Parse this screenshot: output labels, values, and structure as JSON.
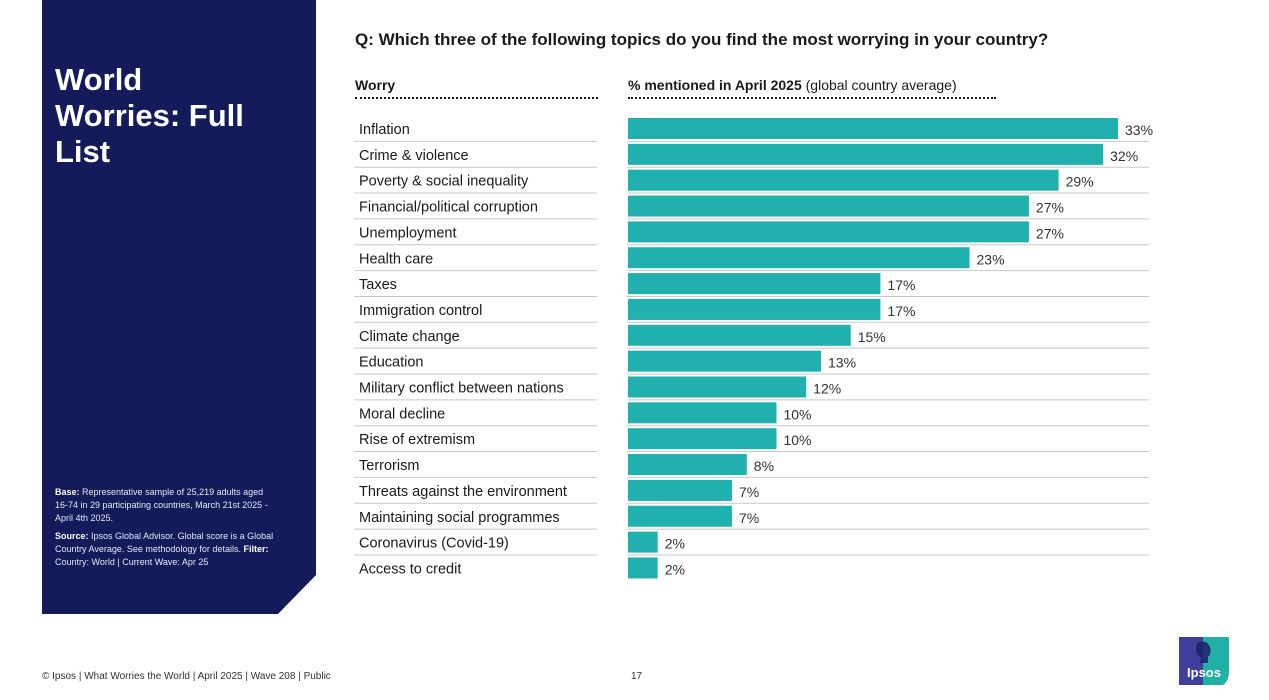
{
  "sidebar": {
    "title": "World\nWorries: Full\nList",
    "base_label": "Base:",
    "base_text": "Representative sample of 25,219 adults aged 16-74 in 29 participating countries, March 21st 2025 - April 4th 2025.",
    "source_label": "Source:",
    "source_text": "Ipsos Global Advisor. Global score is a Global Country Average. See methodology for details.",
    "filter_label": "Filter:",
    "filter_text": "Country: World | Current Wave: Apr 25"
  },
  "question": "Q: Which three of the following topics do you find the most worrying in your country?",
  "columns": {
    "worry": "Worry",
    "pct_bold": "% mentioned in April 2025",
    "pct_normal": "(global country average)"
  },
  "colors": {
    "bar": "#20b0ad",
    "sidebar": "#131b5b",
    "divider": "#c8c8c8"
  },
  "chart_data": {
    "type": "bar",
    "orientation": "horizontal",
    "title": "Q: Which three of the following topics do you find the most worrying in your country?",
    "xlabel": "% mentioned in April 2025 (global country average)",
    "ylabel": "Worry",
    "xlim": [
      0,
      33
    ],
    "grid": false,
    "categories": [
      "Inflation",
      "Crime & violence",
      "Poverty & social inequality",
      "Financial/political corruption",
      "Unemployment",
      "Health care",
      "Taxes",
      "Immigration control",
      "Climate change",
      "Education",
      "Military conflict between nations",
      "Moral decline",
      "Rise of extremism",
      "Terrorism",
      "Threats against the environment",
      "Maintaining social programmes",
      "Coronavirus (Covid-19)",
      "Access to credit"
    ],
    "values": [
      33,
      32,
      29,
      27,
      27,
      23,
      17,
      17,
      15,
      13,
      12,
      10,
      10,
      8,
      7,
      7,
      2,
      2
    ],
    "value_labels": [
      "33%",
      "32%",
      "29%",
      "27%",
      "27%",
      "23%",
      "17%",
      "17%",
      "15%",
      "13%",
      "12%",
      "10%",
      "10%",
      "8%",
      "7%",
      "7%",
      "2%",
      "2%"
    ]
  },
  "footer": {
    "text": "© Ipsos | What Worries the World | April 2025 | Wave 208 | Public",
    "page_number": "17"
  },
  "logo": {
    "text": "Ipsos"
  }
}
